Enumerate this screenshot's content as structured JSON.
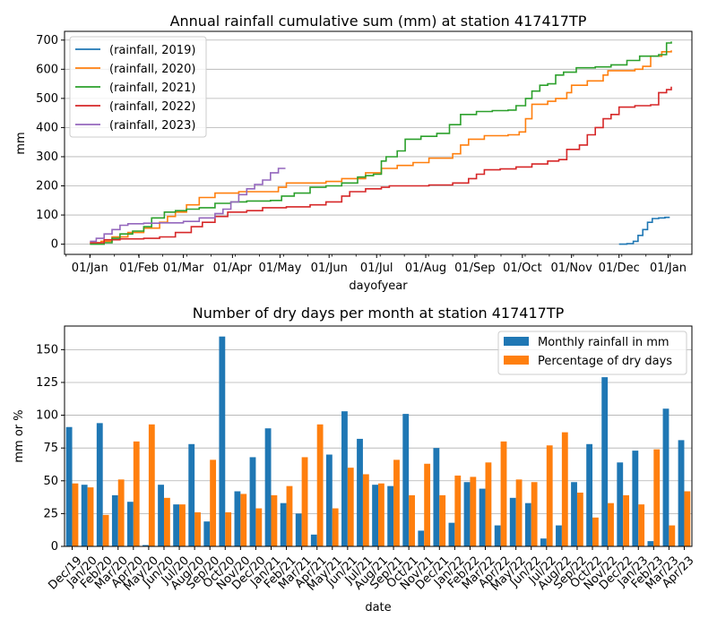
{
  "chart_data": [
    {
      "type": "line",
      "title": "Annual rainfall cumulative sum (mm) at station 417417TP",
      "xlabel": "dayofyear",
      "ylabel": "mm",
      "xlim": [
        -15,
        381
      ],
      "ylim": [
        -35,
        730
      ],
      "yticks": [
        0,
        100,
        200,
        300,
        400,
        500,
        600,
        700
      ],
      "ytick_labels": [
        "0",
        "100",
        "200",
        "300",
        "400",
        "500",
        "600",
        "700"
      ],
      "xtick_positions": [
        1,
        32,
        60,
        91,
        121,
        152,
        182,
        213,
        244,
        274,
        305,
        335,
        366
      ],
      "xtick_labels": [
        "01/Jan",
        "01/Feb",
        "01/Mar",
        "01/Apr",
        "01/May",
        "01/Jun",
        "01/Jul",
        "01/Aug",
        "01/Sep",
        "01/Oct",
        "01/Nov",
        "01/Dec",
        "01/Jan"
      ],
      "grid": "horizontal",
      "legend_position": "upper-left",
      "series": [
        {
          "name": "(rainfall, 2019)",
          "color": "#1f77b4",
          "points": [
            [
              335,
              0
            ],
            [
              340,
              2
            ],
            [
              344,
              10
            ],
            [
              347,
              30
            ],
            [
              350,
              50
            ],
            [
              353,
              75
            ],
            [
              356,
              88
            ],
            [
              360,
              90
            ],
            [
              364,
              92
            ],
            [
              367,
              92
            ]
          ]
        },
        {
          "name": "(rainfall, 2020)",
          "color": "#ff7f0e",
          "points": [
            [
              1,
              5
            ],
            [
              8,
              10
            ],
            [
              15,
              25
            ],
            [
              25,
              40
            ],
            [
              35,
              55
            ],
            [
              45,
              75
            ],
            [
              50,
              95
            ],
            [
              55,
              110
            ],
            [
              62,
              135
            ],
            [
              70,
              160
            ],
            [
              80,
              175
            ],
            [
              95,
              180
            ],
            [
              110,
              180
            ],
            [
              120,
              195
            ],
            [
              125,
              210
            ],
            [
              135,
              210
            ],
            [
              150,
              215
            ],
            [
              160,
              225
            ],
            [
              175,
              245
            ],
            [
              185,
              260
            ],
            [
              195,
              270
            ],
            [
              205,
              280
            ],
            [
              215,
              295
            ],
            [
              230,
              310
            ],
            [
              235,
              340
            ],
            [
              240,
              360
            ],
            [
              250,
              372
            ],
            [
              265,
              375
            ],
            [
              272,
              385
            ],
            [
              276,
              430
            ],
            [
              280,
              480
            ],
            [
              290,
              490
            ],
            [
              295,
              500
            ],
            [
              302,
              520
            ],
            [
              305,
              545
            ],
            [
              315,
              560
            ],
            [
              325,
              580
            ],
            [
              328,
              595
            ],
            [
              345,
              600
            ],
            [
              350,
              610
            ],
            [
              355,
              645
            ],
            [
              362,
              660
            ],
            [
              368,
              665
            ]
          ]
        },
        {
          "name": "(rainfall, 2021)",
          "color": "#2ca02c",
          "points": [
            [
              1,
              0
            ],
            [
              10,
              5
            ],
            [
              15,
              20
            ],
            [
              20,
              35
            ],
            [
              28,
              45
            ],
            [
              35,
              60
            ],
            [
              40,
              90
            ],
            [
              48,
              110
            ],
            [
              55,
              115
            ],
            [
              62,
              120
            ],
            [
              70,
              125
            ],
            [
              80,
              140
            ],
            [
              90,
              145
            ],
            [
              100,
              148
            ],
            [
              115,
              150
            ],
            [
              122,
              165
            ],
            [
              130,
              175
            ],
            [
              140,
              195
            ],
            [
              150,
              200
            ],
            [
              160,
              210
            ],
            [
              170,
              230
            ],
            [
              175,
              235
            ],
            [
              180,
              240
            ],
            [
              185,
              285
            ],
            [
              188,
              300
            ],
            [
              195,
              320
            ],
            [
              200,
              360
            ],
            [
              210,
              370
            ],
            [
              220,
              380
            ],
            [
              228,
              410
            ],
            [
              235,
              445
            ],
            [
              245,
              455
            ],
            [
              255,
              458
            ],
            [
              265,
              460
            ],
            [
              270,
              475
            ],
            [
              276,
              500
            ],
            [
              280,
              525
            ],
            [
              285,
              545
            ],
            [
              290,
              550
            ],
            [
              295,
              580
            ],
            [
              300,
              590
            ],
            [
              308,
              605
            ],
            [
              320,
              608
            ],
            [
              330,
              615
            ],
            [
              340,
              630
            ],
            [
              348,
              645
            ],
            [
              360,
              650
            ],
            [
              365,
              690
            ],
            [
              368,
              695
            ]
          ]
        },
        {
          "name": "(rainfall, 2022)",
          "color": "#d62728",
          "points": [
            [
              1,
              5
            ],
            [
              10,
              15
            ],
            [
              20,
              18
            ],
            [
              35,
              20
            ],
            [
              45,
              25
            ],
            [
              55,
              40
            ],
            [
              65,
              60
            ],
            [
              72,
              75
            ],
            [
              80,
              95
            ],
            [
              88,
              110
            ],
            [
              100,
              115
            ],
            [
              110,
              125
            ],
            [
              125,
              128
            ],
            [
              140,
              135
            ],
            [
              150,
              145
            ],
            [
              160,
              165
            ],
            [
              165,
              180
            ],
            [
              175,
              190
            ],
            [
              185,
              195
            ],
            [
              190,
              200
            ],
            [
              200,
              200
            ],
            [
              215,
              203
            ],
            [
              230,
              210
            ],
            [
              240,
              225
            ],
            [
              245,
              240
            ],
            [
              250,
              255
            ],
            [
              260,
              258
            ],
            [
              270,
              265
            ],
            [
              280,
              275
            ],
            [
              290,
              285
            ],
            [
              297,
              290
            ],
            [
              302,
              325
            ],
            [
              310,
              340
            ],
            [
              315,
              375
            ],
            [
              320,
              400
            ],
            [
              325,
              430
            ],
            [
              330,
              445
            ],
            [
              335,
              470
            ],
            [
              345,
              475
            ],
            [
              355,
              478
            ],
            [
              360,
              520
            ],
            [
              365,
              530
            ],
            [
              368,
              540
            ]
          ]
        },
        {
          "name": "(rainfall, 2023)",
          "color": "#9467bd",
          "points": [
            [
              1,
              10
            ],
            [
              5,
              20
            ],
            [
              10,
              35
            ],
            [
              15,
              50
            ],
            [
              20,
              65
            ],
            [
              25,
              70
            ],
            [
              35,
              72
            ],
            [
              45,
              73
            ],
            [
              60,
              78
            ],
            [
              70,
              90
            ],
            [
              80,
              105
            ],
            [
              85,
              120
            ],
            [
              90,
              145
            ],
            [
              95,
              170
            ],
            [
              100,
              190
            ],
            [
              105,
              205
            ],
            [
              110,
              220
            ],
            [
              115,
              245
            ],
            [
              120,
              260
            ],
            [
              124,
              262
            ]
          ]
        }
      ]
    },
    {
      "type": "bar",
      "title": "Number of dry days per month at station 417417TP",
      "xlabel": "date",
      "ylabel": "mm or %",
      "ylim": [
        0,
        168
      ],
      "yticks": [
        0,
        25,
        50,
        75,
        100,
        125,
        150
      ],
      "ytick_labels": [
        "0",
        "25",
        "50",
        "75",
        "100",
        "125",
        "150"
      ],
      "grid": "horizontal",
      "legend_position": "upper-right",
      "categories": [
        "Dec/19",
        "Jan/20",
        "Feb/20",
        "Mar/20",
        "Apr/20",
        "May/20",
        "Jun/20",
        "Jul/20",
        "Aug/20",
        "Sep/20",
        "Oct/20",
        "Nov/20",
        "Dec/20",
        "Jan/21",
        "Feb/21",
        "Mar/21",
        "Apr/21",
        "May/21",
        "Jun/21",
        "Jul/21",
        "Aug/21",
        "Sep/21",
        "Oct/21",
        "Nov/21",
        "Dec/21",
        "Jan/22",
        "Feb/22",
        "Mar/22",
        "Apr/22",
        "May/22",
        "Jun/22",
        "Jul/22",
        "Aug/22",
        "Sep/22",
        "Oct/22",
        "Nov/22",
        "Dec/22",
        "Jan/23",
        "Feb/23",
        "Mar/23",
        "Apr/23"
      ],
      "series": [
        {
          "name": "Monthly rainfall in mm",
          "color": "#1f77b4",
          "values": [
            91,
            47,
            94,
            39,
            34,
            1,
            47,
            32,
            78,
            19,
            160,
            42,
            68,
            90,
            33,
            25,
            9,
            70,
            103,
            82,
            47,
            46,
            101,
            12,
            75,
            18,
            49,
            44,
            16,
            37,
            33,
            6,
            16,
            49,
            78,
            129,
            64,
            73,
            4,
            105,
            81
          ]
        },
        {
          "name": "Percentage of dry days",
          "color": "#ff7f0e",
          "values": [
            48,
            45,
            24,
            51,
            80,
            93,
            37,
            32,
            26,
            66,
            26,
            40,
            29,
            39,
            46,
            68,
            93,
            29,
            60,
            55,
            48,
            66,
            39,
            63,
            39,
            54,
            53,
            64,
            80,
            51,
            49,
            77,
            87,
            41,
            22,
            33,
            39,
            32,
            74,
            16,
            42
          ]
        }
      ]
    }
  ]
}
